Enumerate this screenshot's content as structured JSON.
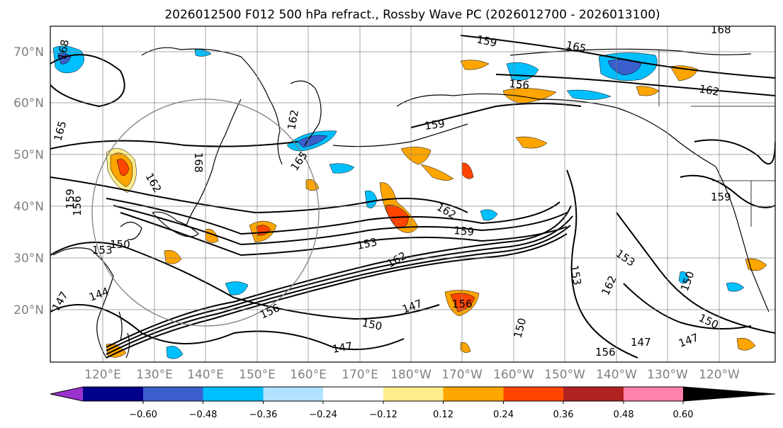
{
  "title": "2026012500 F012 500 hPa refract., Rossby Wave PC (2026012700 - 2026013100)",
  "map": {
    "lat_labels": [
      "70°N",
      "60°N",
      "50°N",
      "40°N",
      "30°N",
      "20°N"
    ],
    "lon_labels": [
      "120°E",
      "130°E",
      "140°E",
      "150°E",
      "160°E",
      "170°E",
      "180°W",
      "170°W",
      "160°W",
      "150°W",
      "140°W",
      "130°W",
      "120°W"
    ],
    "contour_labels": [
      "168",
      "165",
      "162",
      "159",
      "156",
      "153",
      "150",
      "147",
      "144",
      "162",
      "168",
      "165",
      "159",
      "165",
      "162",
      "159",
      "162",
      "159",
      "156",
      "153",
      "150",
      "147",
      "156",
      "162",
      "153",
      "150",
      "147",
      "153",
      "150",
      "162",
      "159",
      "168",
      "156",
      "147",
      "150",
      "147",
      "156"
    ]
  },
  "colorbar": {
    "tick_labels": [
      "−0.60",
      "−0.48",
      "−0.36",
      "−0.24",
      "−0.12",
      "0.12",
      "0.24",
      "0.36",
      "0.48",
      "0.60"
    ],
    "colors": [
      "#9a32cd",
      "#00008b",
      "#3a5fcd",
      "#00bfff",
      "#b0e2ff",
      "#ffffff",
      "#ffec8b",
      "#ffa500",
      "#ff4500",
      "#b22222",
      "#ff82ab"
    ]
  }
}
